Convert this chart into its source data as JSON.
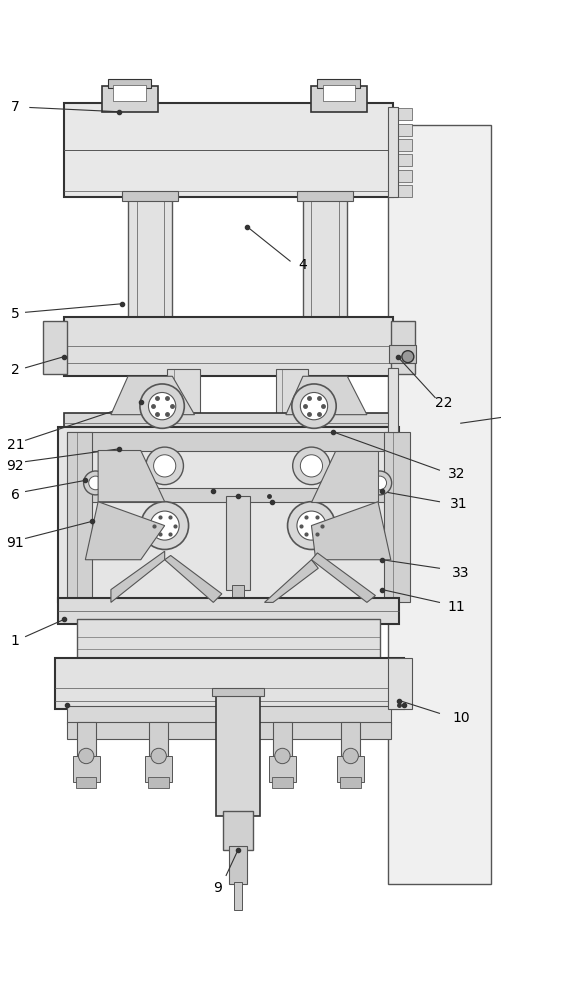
{
  "bg_color": "#ffffff",
  "lc": "#555555",
  "dk": "#333333",
  "fig_w": 5.87,
  "fig_h": 10.0,
  "dpi": 100,
  "label_fontsize": 10
}
